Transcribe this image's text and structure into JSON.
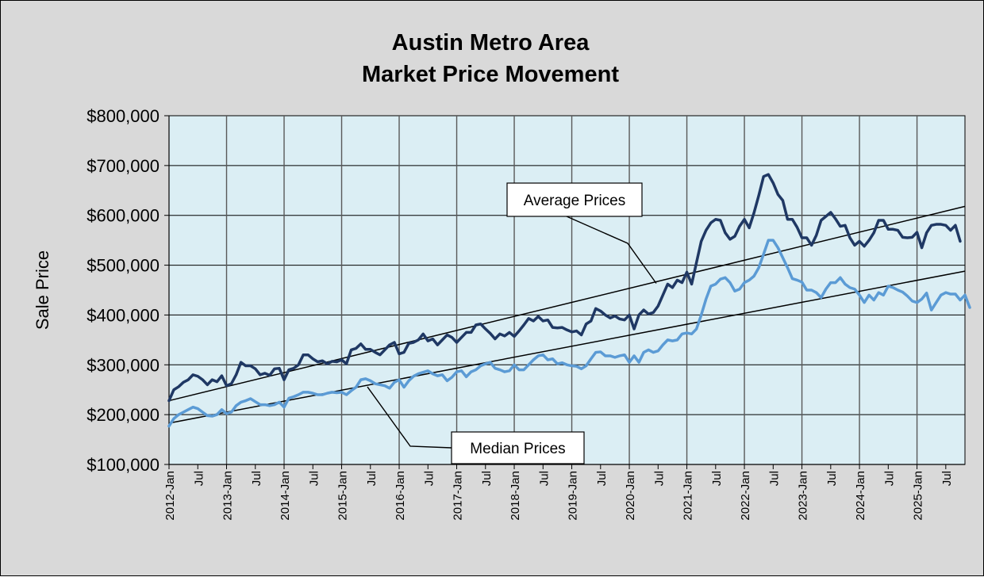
{
  "chart_data": {
    "type": "line",
    "title": [
      "Austin Metro Area",
      "Market Price Movement"
    ],
    "ylabel": "Sale Price",
    "xlabel": "",
    "ylim": [
      100000,
      800000
    ],
    "yticks": [
      "$100,000",
      "$200,000",
      "$300,000",
      "$400,000",
      "$500,000",
      "$600,000",
      "$700,000",
      "$800,000"
    ],
    "ytick_values": [
      100000,
      200000,
      300000,
      400000,
      500000,
      600000,
      700000,
      800000
    ],
    "start": "2012-Jan",
    "xticks": [
      "2012-Jan",
      "Jul",
      "2013-Jan",
      "Jul",
      "2014-Jan",
      "Jul",
      "2015-Jan",
      "Jul",
      "2016-Jan",
      "Jul",
      "2017-Jan",
      "Jul",
      "2018-Jan",
      "Jul",
      "2019-Jan",
      "Jul",
      "2020-Jan",
      "Jul",
      "2021-Jan",
      "Jul",
      "2022-Jan",
      "Jul",
      "2023-Jan",
      "Jul",
      "2024-Jan",
      "Jul",
      "2025-Jan",
      "Jul"
    ],
    "grid": "vertical lines at each January, horizontal lines at each y tick",
    "colors": {
      "plot_bg": "#dbeef4",
      "frame_bg": "#d9d9d9",
      "average": "#1f3864",
      "median": "#5b9bd5",
      "trend": "#000000"
    },
    "series": [
      {
        "name": "Average Prices",
        "values": [
          228000,
          250000,
          256000,
          265000,
          270000,
          280000,
          277000,
          270000,
          260000,
          270000,
          266000,
          278000,
          258000,
          262000,
          280000,
          305000,
          298000,
          298000,
          292000,
          280000,
          283000,
          279000,
          292000,
          293000,
          270000,
          290000,
          293000,
          300000,
          320000,
          320000,
          312000,
          306000,
          308000,
          302000,
          307000,
          306000,
          310000,
          302000,
          330000,
          333000,
          342000,
          331000,
          331000,
          325000,
          320000,
          330000,
          340000,
          345000,
          322000,
          325000,
          343000,
          345000,
          350000,
          362000,
          348000,
          352000,
          340000,
          350000,
          360000,
          355000,
          345000,
          355000,
          365000,
          365000,
          380000,
          382000,
          372000,
          363000,
          352000,
          362000,
          358000,
          365000,
          357000,
          368000,
          380000,
          393000,
          388000,
          397000,
          388000,
          390000,
          375000,
          374000,
          375000,
          370000,
          366000,
          368000,
          360000,
          382000,
          388000,
          413000,
          408000,
          400000,
          394000,
          398000,
          392000,
          390000,
          400000,
          372000,
          400000,
          410000,
          402000,
          405000,
          418000,
          440000,
          462000,
          455000,
          470000,
          465000,
          486000,
          462000,
          505000,
          548000,
          570000,
          585000,
          592000,
          590000,
          565000,
          552000,
          558000,
          578000,
          592000,
          575000,
          605000,
          640000,
          678000,
          682000,
          665000,
          642000,
          630000,
          592000,
          592000,
          576000,
          555000,
          555000,
          540000,
          560000,
          590000,
          598000,
          606000,
          593000,
          578000,
          580000,
          555000,
          540000,
          548000,
          538000,
          550000,
          565000,
          590000,
          590000,
          572000,
          572000,
          570000,
          556000,
          555000,
          556000,
          566000,
          535000,
          565000,
          580000,
          582000,
          582000,
          580000,
          570000,
          580000,
          548000
        ]
      },
      {
        "name": "Median Prices",
        "values": [
          177000,
          192000,
          200000,
          205000,
          210000,
          215000,
          212000,
          205000,
          198000,
          197000,
          200000,
          210000,
          202000,
          205000,
          218000,
          225000,
          228000,
          232000,
          226000,
          220000,
          220000,
          218000,
          220000,
          225000,
          215000,
          233000,
          236000,
          240000,
          245000,
          245000,
          243000,
          240000,
          240000,
          243000,
          245000,
          244000,
          245000,
          240000,
          248000,
          255000,
          270000,
          272000,
          268000,
          262000,
          260000,
          258000,
          253000,
          265000,
          270000,
          255000,
          268000,
          277000,
          282000,
          285000,
          288000,
          282000,
          278000,
          280000,
          268000,
          275000,
          286000,
          288000,
          276000,
          286000,
          290000,
          298000,
          302000,
          305000,
          293000,
          290000,
          286000,
          288000,
          300000,
          290000,
          290000,
          300000,
          310000,
          318000,
          320000,
          310000,
          312000,
          302000,
          304000,
          300000,
          298000,
          297000,
          292000,
          298000,
          312000,
          325000,
          326000,
          318000,
          318000,
          315000,
          318000,
          320000,
          305000,
          318000,
          305000,
          325000,
          330000,
          325000,
          328000,
          340000,
          350000,
          348000,
          350000,
          362000,
          364000,
          362000,
          372000,
          400000,
          432000,
          458000,
          462000,
          472000,
          475000,
          465000,
          448000,
          452000,
          465000,
          470000,
          478000,
          495000,
          522000,
          550000,
          550000,
          535000,
          515000,
          495000,
          473000,
          470000,
          466000,
          450000,
          450000,
          445000,
          435000,
          452000,
          465000,
          465000,
          475000,
          462000,
          455000,
          452000,
          440000,
          425000,
          440000,
          430000,
          445000,
          440000,
          458000,
          455000,
          450000,
          446000,
          438000,
          428000,
          425000,
          432000,
          444000,
          410000,
          425000,
          440000,
          445000,
          442000,
          442000,
          430000,
          440000,
          415000
        ]
      }
    ],
    "trendlines": [
      {
        "name": "Average Prices",
        "start": 228000,
        "end": 618000
      },
      {
        "name": "Median Prices",
        "start": 183000,
        "end": 488000
      }
    ],
    "callouts": [
      {
        "text": "Average Prices",
        "series": "Average Prices"
      },
      {
        "text": "Median Prices",
        "series": "Median Prices"
      }
    ]
  }
}
